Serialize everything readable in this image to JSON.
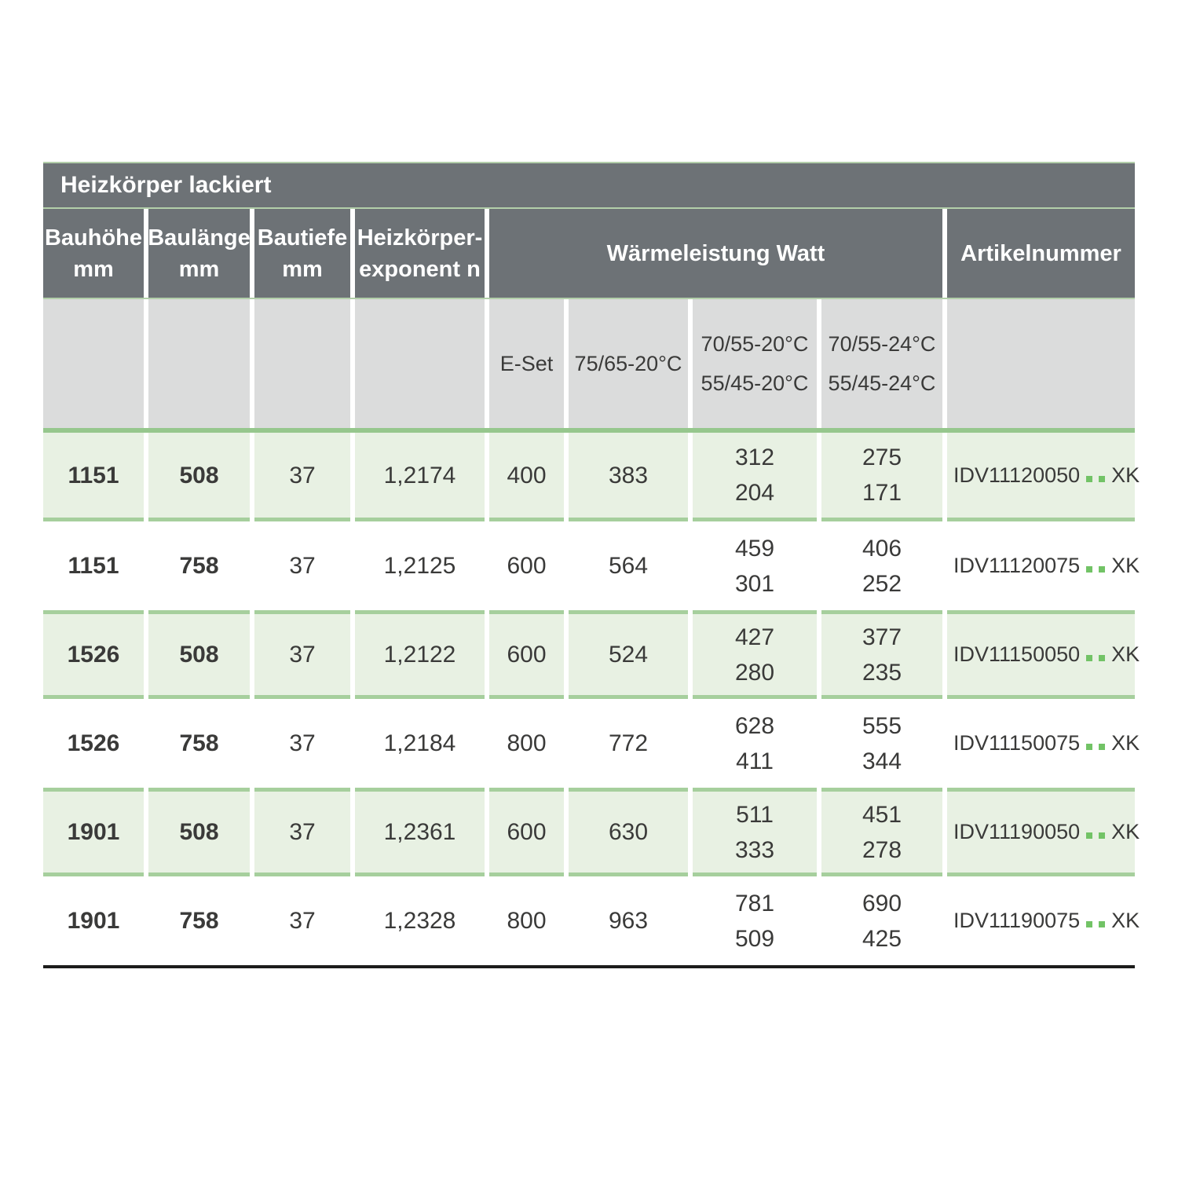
{
  "title": "Heizkörper lackiert",
  "columns": {
    "bauhoehe": {
      "label": "Bauhöhe",
      "unit": "mm"
    },
    "baulaenge": {
      "label": "Baulänge",
      "unit": "mm"
    },
    "bautiefe": {
      "label": "Bautiefe",
      "unit": "mm"
    },
    "exponent": {
      "line1": "Heizkörper-",
      "line2": "exponent n"
    },
    "waermeleistung_group": "Wärmeleistung Watt",
    "artikelnummer": "Artikelnummer"
  },
  "subheaders": {
    "eset": "E-Set",
    "t7565": "75/65-20°C",
    "t20": {
      "line1": "70/55-20°C",
      "line2": "55/45-20°C"
    },
    "t24": {
      "line1": "70/55-24°C",
      "line2": "55/45-24°C"
    }
  },
  "rows": [
    {
      "bauhoehe": "1151",
      "baulaenge": "508",
      "bautiefe": "37",
      "exponent": "1,2174",
      "eset": "400",
      "w7565": "383",
      "w20": [
        "312",
        "204"
      ],
      "w24": [
        "275",
        "171"
      ],
      "artikel_prefix": "IDV11120050",
      "artikel_suffix": "XK",
      "highlight": true
    },
    {
      "bauhoehe": "1151",
      "baulaenge": "758",
      "bautiefe": "37",
      "exponent": "1,2125",
      "eset": "600",
      "w7565": "564",
      "w20": [
        "459",
        "301"
      ],
      "w24": [
        "406",
        "252"
      ],
      "artikel_prefix": "IDV11120075",
      "artikel_suffix": "XK",
      "highlight": false
    },
    {
      "bauhoehe": "1526",
      "baulaenge": "508",
      "bautiefe": "37",
      "exponent": "1,2122",
      "eset": "600",
      "w7565": "524",
      "w20": [
        "427",
        "280"
      ],
      "w24": [
        "377",
        "235"
      ],
      "artikel_prefix": "IDV11150050",
      "artikel_suffix": "XK",
      "highlight": true
    },
    {
      "bauhoehe": "1526",
      "baulaenge": "758",
      "bautiefe": "37",
      "exponent": "1,2184",
      "eset": "800",
      "w7565": "772",
      "w20": [
        "628",
        "411"
      ],
      "w24": [
        "555",
        "344"
      ],
      "artikel_prefix": "IDV11150075",
      "artikel_suffix": "XK",
      "highlight": false
    },
    {
      "bauhoehe": "1901",
      "baulaenge": "508",
      "bautiefe": "37",
      "exponent": "1,2361",
      "eset": "600",
      "w7565": "630",
      "w20": [
        "511",
        "333"
      ],
      "w24": [
        "451",
        "278"
      ],
      "artikel_prefix": "IDV11190050",
      "artikel_suffix": "XK",
      "highlight": true
    },
    {
      "bauhoehe": "1901",
      "baulaenge": "758",
      "bautiefe": "37",
      "exponent": "1,2328",
      "eset": "800",
      "w7565": "963",
      "w20": [
        "781",
        "509"
      ],
      "w24": [
        "690",
        "425"
      ],
      "artikel_prefix": "IDV11190075",
      "artikel_suffix": "XK",
      "highlight": false
    }
  ],
  "colors": {
    "header-bg": "#6d7276",
    "subheader-bg": "#dbdcdc",
    "row-green": "#e8f1e3",
    "band-green": "#96c78d",
    "cell-border": "#a6cf9d",
    "dot-green": "#72c366",
    "text-dark": "#3a3a39",
    "hairline": "#b3cfaa",
    "bottom-line": "#1c1c1b"
  }
}
